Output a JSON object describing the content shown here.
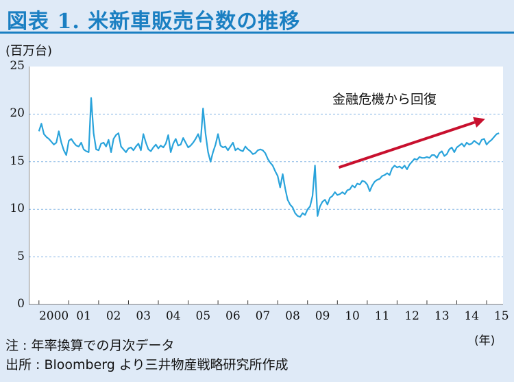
{
  "header": {
    "title": "図表 1. 米新車販売台数の推移"
  },
  "notes": {
    "note": "注 : 年率換算での月次データ",
    "source": "出所 : Bloomberg より三井物産戦略研究所作成"
  },
  "chart_data": {
    "type": "line",
    "unit_label": "(百万台)",
    "x_unit_label": "(年)",
    "annotation": "金融危機から回復",
    "y_ticks": [
      "25",
      "20",
      "15",
      "10",
      "5",
      "0"
    ],
    "x_ticks": [
      "2000",
      "01",
      "02",
      "03",
      "04",
      "05",
      "06",
      "07",
      "08",
      "09",
      "10",
      "11",
      "12",
      "13",
      "14",
      "15"
    ],
    "ylim": [
      0,
      25
    ],
    "grid": "horizontal dashed",
    "colors": {
      "series": "#29a3db",
      "arrow": "#c8102e",
      "title": "#1a7fc2"
    },
    "series": [
      {
        "frequency": "monthly",
        "start": "2000-01",
        "end": "2015-06",
        "values": [
          18.2,
          19.0,
          17.9,
          17.6,
          17.4,
          17.1,
          16.8,
          17.0,
          18.2,
          17.0,
          16.2,
          15.7,
          17.2,
          17.4,
          17.0,
          16.7,
          16.6,
          17.0,
          16.3,
          16.1,
          16.0,
          21.7,
          18.0,
          16.3,
          16.2,
          16.9,
          17.0,
          16.6,
          17.3,
          16.0,
          17.4,
          17.8,
          18.0,
          16.6,
          16.3,
          16.0,
          16.4,
          16.5,
          16.2,
          16.6,
          16.9,
          16.2,
          17.9,
          17.0,
          16.3,
          16.1,
          16.5,
          16.8,
          16.4,
          16.7,
          16.5,
          16.9,
          17.8,
          16.0,
          16.9,
          17.4,
          16.7,
          16.8,
          17.5,
          17.0,
          16.5,
          16.7,
          17.0,
          17.4,
          17.9,
          17.1,
          20.6,
          17.9,
          16.0,
          15.0,
          16.0,
          16.8,
          17.9,
          16.7,
          16.5,
          16.6,
          16.2,
          16.6,
          17.0,
          16.2,
          16.4,
          16.2,
          16.1,
          16.6,
          16.3,
          16.1,
          15.8,
          15.9,
          16.2,
          16.3,
          16.2,
          15.9,
          15.3,
          14.9,
          14.6,
          14.0,
          13.5,
          12.3,
          13.7,
          12.2,
          11.0,
          10.5,
          10.2,
          9.6,
          9.3,
          9.2,
          9.6,
          9.4,
          10.0,
          10.3,
          11.4,
          14.6,
          9.3,
          10.3,
          10.8,
          11.0,
          10.5,
          11.2,
          11.4,
          11.8,
          11.5,
          11.6,
          11.8,
          11.6,
          12.0,
          12.1,
          12.5,
          12.3,
          12.7,
          12.6,
          13.0,
          12.9,
          12.6,
          11.9,
          12.5,
          12.9,
          13.1,
          13.2,
          13.5,
          13.6,
          13.8,
          13.6,
          14.3,
          14.6,
          14.4,
          14.5,
          14.3,
          14.6,
          14.2,
          14.7,
          15.0,
          15.3,
          15.2,
          15.5,
          15.4,
          15.4,
          15.5,
          15.4,
          15.7,
          15.7,
          15.4,
          15.9,
          16.1,
          15.6,
          15.8,
          16.3,
          16.5,
          16.0,
          16.5,
          16.7,
          16.9,
          16.6,
          17.0,
          16.8,
          16.9,
          17.2,
          17.0,
          16.8,
          17.3,
          17.4,
          16.8,
          17.1,
          17.3,
          17.6,
          17.9,
          18.0
        ]
      }
    ]
  }
}
